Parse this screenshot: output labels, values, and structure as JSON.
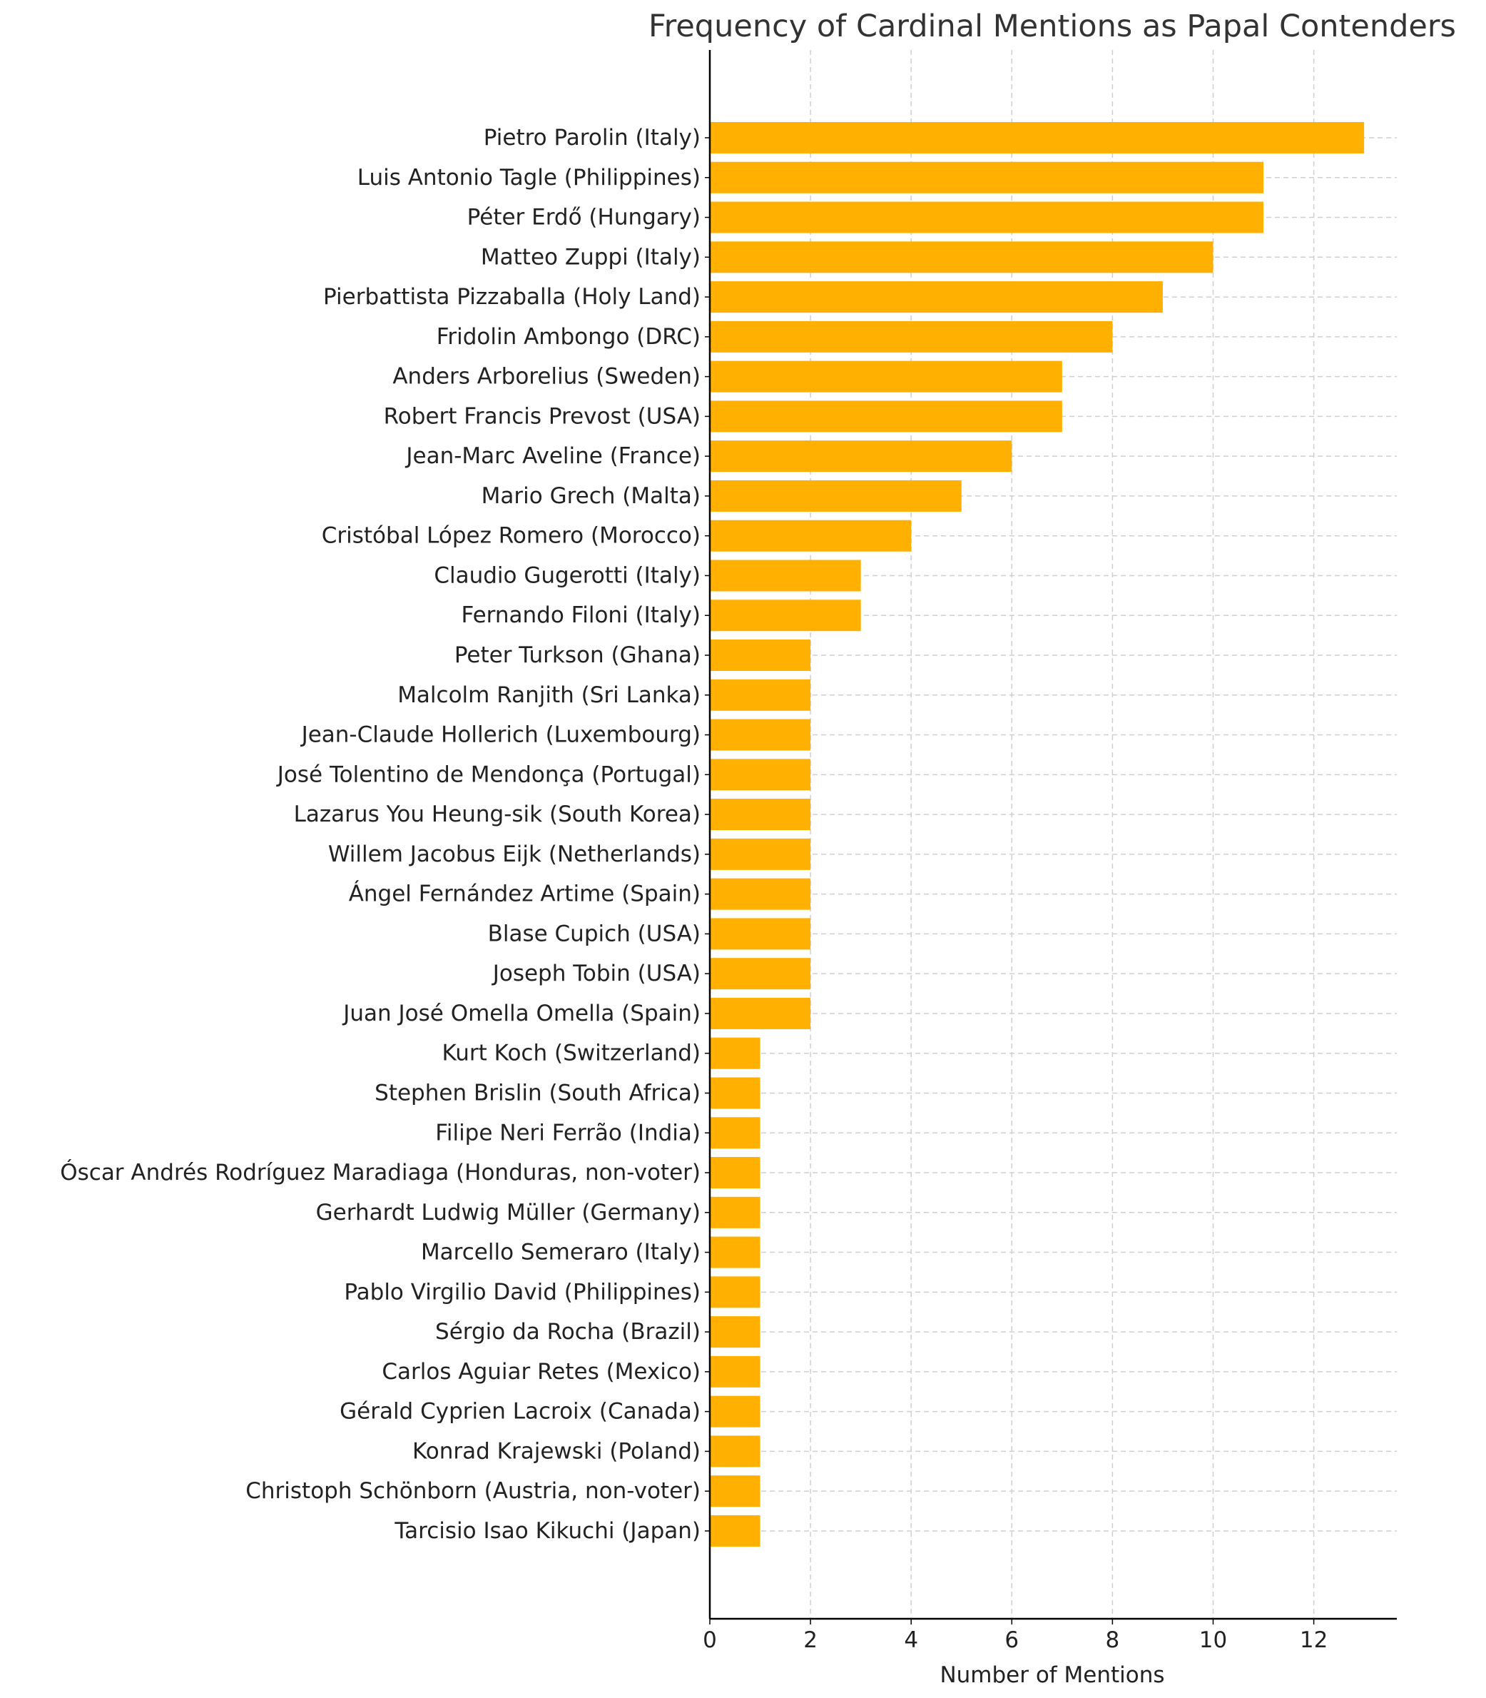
{
  "chart_data": {
    "type": "bar",
    "orientation": "horizontal",
    "title": "Frequency of Cardinal Mentions as Papal Contenders",
    "xlabel": "Number of Mentions",
    "ylabel": "",
    "xlim": [
      0,
      13.65
    ],
    "xticks": [
      "0",
      "2",
      "4",
      "6",
      "8",
      "10",
      "12"
    ],
    "grid": true,
    "bar_color": "#FFB000",
    "categories": [
      "Pietro Parolin (Italy)",
      "Luis Antonio Tagle (Philippines)",
      "Péter Erdő (Hungary)",
      "Matteo Zuppi (Italy)",
      "Pierbattista Pizzaballa (Holy Land)",
      "Fridolin Ambongo (DRC)",
      "Anders Arborelius (Sweden)",
      "Robert Francis Prevost (USA)",
      "Jean-Marc Aveline (France)",
      "Mario Grech (Malta)",
      "Cristóbal López Romero (Morocco)",
      "Claudio Gugerotti (Italy)",
      "Fernando Filoni (Italy)",
      "Peter Turkson (Ghana)",
      "Malcolm Ranjith (Sri Lanka)",
      "Jean-Claude Hollerich (Luxembourg)",
      "José Tolentino de Mendonça (Portugal)",
      "Lazarus You Heung-sik (South Korea)",
      "Willem Jacobus Eijk (Netherlands)",
      "Ángel Fernández Artime (Spain)",
      "Blase Cupich (USA)",
      "Joseph Tobin (USA)",
      "Juan José Omella Omella (Spain)",
      "Kurt Koch (Switzerland)",
      "Stephen Brislin (South Africa)",
      "Filipe Neri Ferrão (India)",
      "Óscar Andrés Rodríguez Maradiaga (Honduras, non-voter)",
      "Gerhardt Ludwig Müller (Germany)",
      "Marcello Semeraro (Italy)",
      "Pablo Virgilio David (Philippines)",
      "Sérgio da Rocha (Brazil)",
      "Carlos Aguiar Retes (Mexico)",
      "Gérald Cyprien Lacroix (Canada)",
      "Konrad Krajewski (Poland)",
      "Christoph Schönborn (Austria, non-voter)",
      "Tarcisio Isao Kikuchi (Japan)"
    ],
    "values": [
      13,
      11,
      11,
      10,
      9,
      8,
      7,
      7,
      6,
      5,
      4,
      3,
      3,
      2,
      2,
      2,
      2,
      2,
      2,
      2,
      2,
      2,
      2,
      1,
      1,
      1,
      1,
      1,
      1,
      1,
      1,
      1,
      1,
      1,
      1,
      1
    ]
  }
}
